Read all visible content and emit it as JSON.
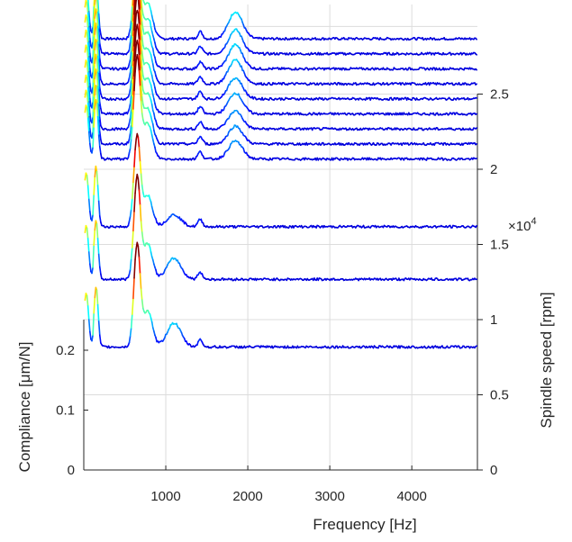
{
  "chart_data": {
    "type": "line",
    "title": "",
    "xlabel": "Frequency [Hz]",
    "ylabel_left": "Compliance [μm/N]",
    "ylabel_right": "Spindle speed [rpm]",
    "right_axis_multiplier": "×10^4",
    "x_ticks": [
      "1000",
      "2000",
      "3000",
      "4000"
    ],
    "x_tick_values": [
      1000,
      2000,
      3000,
      4000
    ],
    "xlim": [
      0,
      4800
    ],
    "left_ticks": [
      "0",
      "0.1",
      "0.2"
    ],
    "left_tick_values": [
      0,
      0.1,
      0.2
    ],
    "right_ticks": [
      "0",
      "0.5",
      "1",
      "1.5",
      "2",
      "2.5"
    ],
    "right_tick_values": [
      0,
      0.5,
      1,
      1.5,
      2,
      2.5
    ],
    "right_ylim": [
      0,
      2.5
    ],
    "colormap": "jet",
    "colors": {
      "low": "#00008f",
      "mid_low": "#00ffff",
      "mid": "#ffff00",
      "high": "#800000"
    },
    "grid": true,
    "series": [
      {
        "speed": 0.4,
        "baseline": 0.105,
        "peak_hz": 650,
        "peak_amp": 0.17,
        "second_hz": 1100,
        "second_amp": 0.04
      },
      {
        "speed": 0.85,
        "baseline": 0.105,
        "peak_hz": 650,
        "peak_amp": 0.17,
        "second_hz": 1100,
        "second_amp": 0.035
      },
      {
        "speed": 1.2,
        "baseline": 0.105,
        "peak_hz": 650,
        "peak_amp": 0.15,
        "second_hz": 1100,
        "second_amp": 0.02
      },
      {
        "speed": 1.65,
        "baseline": 0.105,
        "peak_hz": 650,
        "peak_amp": 0.17,
        "second_hz": 1850,
        "second_amp": 0.03
      },
      {
        "speed": 1.75,
        "baseline": 0.105,
        "peak_hz": 650,
        "peak_amp": 0.17,
        "second_hz": 1850,
        "second_amp": 0.03
      },
      {
        "speed": 1.85,
        "baseline": 0.105,
        "peak_hz": 650,
        "peak_amp": 0.17,
        "second_hz": 1850,
        "second_amp": 0.03
      },
      {
        "speed": 1.95,
        "baseline": 0.105,
        "peak_hz": 650,
        "peak_amp": 0.17,
        "second_hz": 1850,
        "second_amp": 0.035
      },
      {
        "speed": 2.05,
        "baseline": 0.105,
        "peak_hz": 650,
        "peak_amp": 0.17,
        "second_hz": 1850,
        "second_amp": 0.035
      },
      {
        "speed": 2.15,
        "baseline": 0.105,
        "peak_hz": 650,
        "peak_amp": 0.17,
        "second_hz": 1850,
        "second_amp": 0.04
      },
      {
        "speed": 2.25,
        "baseline": 0.105,
        "peak_hz": 650,
        "peak_amp": 0.17,
        "second_hz": 1850,
        "second_amp": 0.04
      },
      {
        "speed": 2.35,
        "baseline": 0.105,
        "peak_hz": 650,
        "peak_amp": 0.17,
        "second_hz": 1850,
        "second_amp": 0.04
      },
      {
        "speed": 2.45,
        "baseline": 0.105,
        "peak_hz": 650,
        "peak_amp": 0.17,
        "second_hz": 1850,
        "second_amp": 0.045
      }
    ]
  }
}
